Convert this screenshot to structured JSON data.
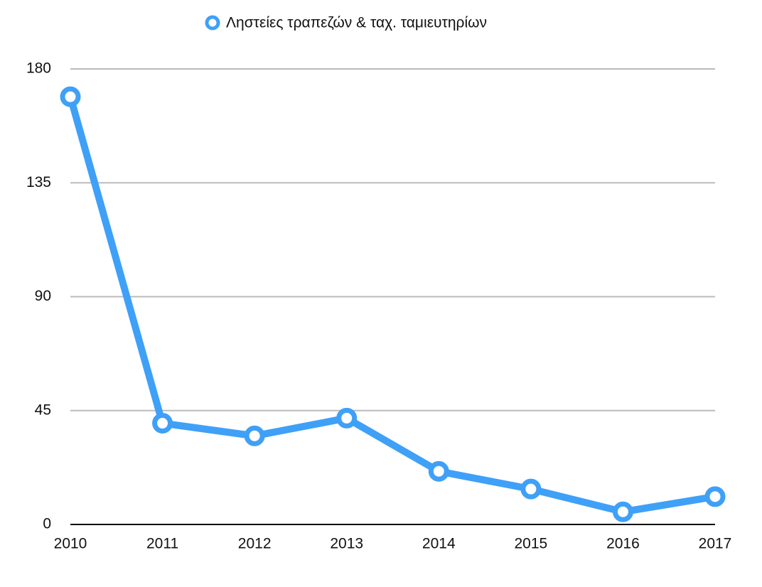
{
  "chart_data": {
    "type": "line",
    "categories": [
      "2010",
      "2011",
      "2012",
      "2013",
      "2014",
      "2015",
      "2016",
      "2017"
    ],
    "series": [
      {
        "name": "Ληστείες τραπεζών & ταχ. ταμιευτηρίων",
        "color": "#3fa0f8",
        "values": [
          169,
          40,
          35,
          42,
          21,
          14,
          5,
          11
        ]
      }
    ],
    "ylim": [
      0,
      180
    ],
    "yticks": [
      0,
      45,
      90,
      135,
      180
    ],
    "grid": true
  }
}
